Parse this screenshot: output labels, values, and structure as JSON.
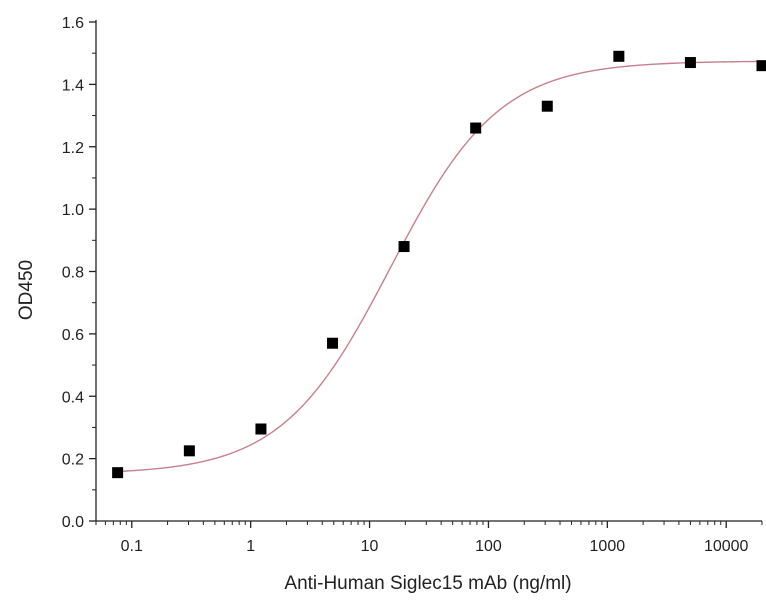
{
  "chart_data": {
    "type": "scatter",
    "title": "",
    "xlabel": "Anti-Human Siglec15 mAb (ng/ml)",
    "ylabel": "OD450",
    "x_scale": "log",
    "xlim": [
      0.05,
      20000
    ],
    "ylim": [
      0.0,
      1.6
    ],
    "x_ticks": [
      0.1,
      1,
      10,
      100,
      1000,
      10000
    ],
    "x_tick_labels": [
      "0.1",
      "1",
      "10",
      "100",
      "1000",
      "10000"
    ],
    "y_ticks": [
      0.0,
      0.2,
      0.4,
      0.6,
      0.8,
      1.0,
      1.2,
      1.4,
      1.6
    ],
    "y_tick_labels": [
      "0.0",
      "0.2",
      "0.4",
      "0.6",
      "0.8",
      "1.0",
      "1.2",
      "1.4",
      "1.6"
    ],
    "grid": false,
    "legend": false,
    "series": [
      {
        "x": [
          0.076,
          0.305,
          1.22,
          4.88,
          19.5,
          78.1,
          312.5,
          1250,
          5000,
          20000
        ],
        "y": [
          0.155,
          0.225,
          0.295,
          0.57,
          0.88,
          1.26,
          1.33,
          1.49,
          1.47,
          1.46
        ],
        "marker": "square",
        "color": "#000000"
      }
    ],
    "fit_curve": {
      "model": "four-parameter logistic",
      "bottom": 0.15,
      "top": 1.475,
      "ec50": 15,
      "hill": 0.95,
      "color": "#c97f8c"
    },
    "axis_color": "#222222"
  }
}
